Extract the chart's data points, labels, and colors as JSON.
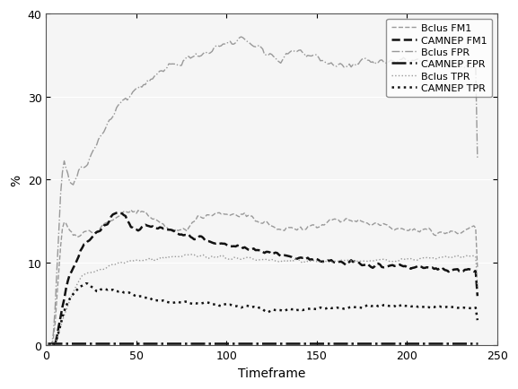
{
  "title": "",
  "xlabel": "Timeframe",
  "ylabel": "%",
  "xlim": [
    0,
    250
  ],
  "ylim": [
    0,
    40
  ],
  "xticks": [
    0,
    50,
    100,
    150,
    200,
    250
  ],
  "yticks": [
    0,
    10,
    20,
    30,
    40
  ],
  "legend_labels": [
    "Bclus FM1",
    "CAMNEP FM1",
    "Bclus FPR",
    "CAMNEP FPR",
    "Bclus TPR",
    "CAMNEP TPR"
  ],
  "series": {
    "bclus_fm1": {
      "color": "#999999",
      "linestyle": "--",
      "linewidth": 1.0
    },
    "camnep_fm1": {
      "color": "#111111",
      "linestyle": "--",
      "linewidth": 1.8
    },
    "bclus_fpr": {
      "color": "#999999",
      "linestyle": "-.",
      "linewidth": 1.0
    },
    "camnep_fpr": {
      "color": "#111111",
      "linestyle": "-.",
      "linewidth": 1.8
    },
    "bclus_tpr": {
      "color": "#999999",
      "linestyle": ":",
      "linewidth": 1.0
    },
    "camnep_tpr": {
      "color": "#111111",
      "linestyle": ":",
      "linewidth": 1.8
    }
  },
  "ax_facecolor": "#f5f5f5",
  "fig_facecolor": "#ffffff",
  "figsize": [
    5.77,
    4.35
  ],
  "dpi": 100
}
